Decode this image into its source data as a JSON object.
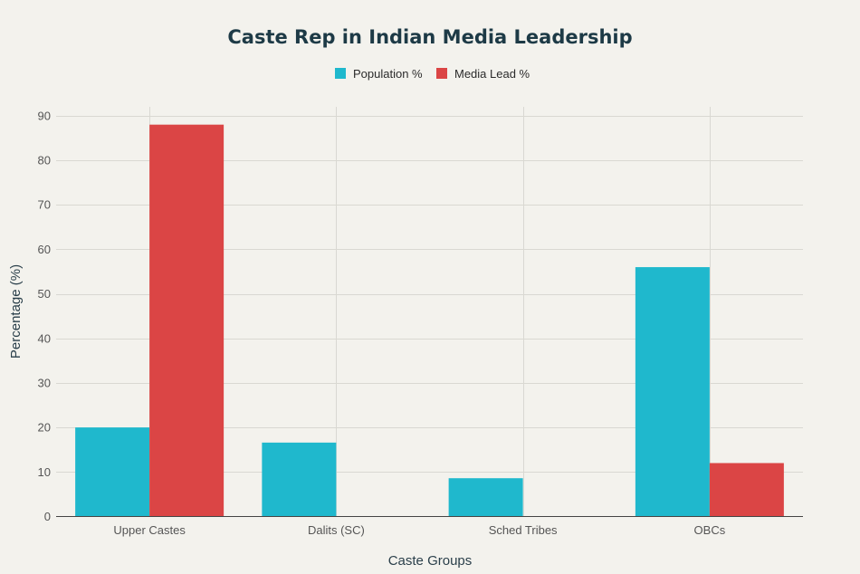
{
  "chart_data": {
    "type": "bar",
    "title": "Caste Rep in Indian Media Leadership",
    "xlabel": "Caste Groups",
    "ylabel": "Percentage (%)",
    "categories": [
      "Upper Castes",
      "Dalits (SC)",
      "Sched Tribes",
      "OBCs"
    ],
    "series": [
      {
        "name": "Population %",
        "values": [
          20,
          16.6,
          8.6,
          56
        ],
        "color": "#1fb8cd"
      },
      {
        "name": "Media Lead %",
        "values": [
          88,
          0,
          0,
          12
        ],
        "color": "#db4545"
      }
    ],
    "ylim": [
      0,
      92
    ],
    "yticks": [
      0,
      10,
      20,
      30,
      40,
      50,
      60,
      70,
      80,
      90
    ],
    "grid": true,
    "legend_position": "top-center"
  }
}
